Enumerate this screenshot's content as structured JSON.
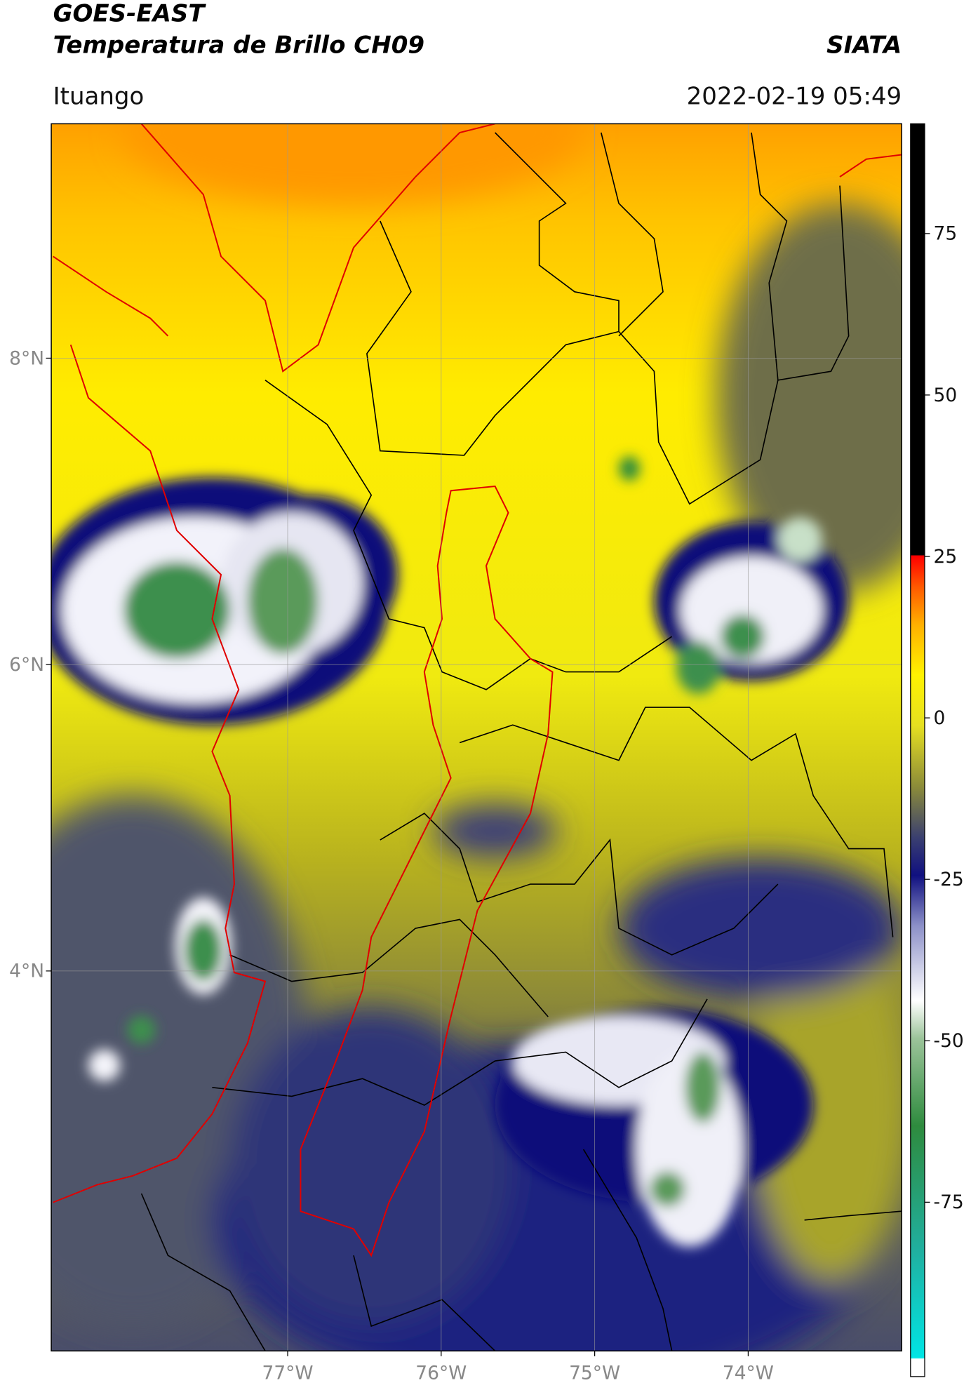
{
  "chart_data": {
    "type": "map",
    "title": "GOES-EAST",
    "subtitle": "Temperatura de Brillo CH09",
    "source": "SIATA",
    "location": "Ituango",
    "datetime": "2022-02-19 05:49",
    "xlim": [
      -78.54,
      -73.0
    ],
    "ylim": [
      1.52,
      9.53
    ],
    "xticks": [
      {
        "value": -77,
        "label": "77°W"
      },
      {
        "value": -76,
        "label": "76°W"
      },
      {
        "value": -75,
        "label": "75°W"
      },
      {
        "value": -74,
        "label": "74°W"
      }
    ],
    "yticks": [
      {
        "value": 8,
        "label": "8°N"
      },
      {
        "value": 6,
        "label": "6°N"
      },
      {
        "value": 4,
        "label": "4°N"
      }
    ],
    "grid": true,
    "colorbar": {
      "lim": [
        -102,
        92
      ],
      "ticks": [
        -75,
        -50,
        -25,
        0,
        25,
        50,
        75
      ]
    }
  }
}
